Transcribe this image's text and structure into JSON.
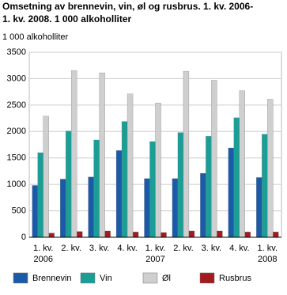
{
  "chart_data": {
    "type": "bar",
    "title": [
      "Omsetning av brennevin, vin, øl og rusbrus.  1. kv. 2006-",
      "1. kv. 2008. 1 000 alkoholliter"
    ],
    "y_label": "1 000 alkoholliter",
    "categories": [
      "1. kv.\n2006",
      "2. kv.",
      "3. kv.",
      "4. kv.",
      "1. kv.\n2007",
      "2. kv.",
      "3. kv.",
      "4. kv.",
      "1. kv.\n2008"
    ],
    "series": [
      {
        "name": "Brennevin",
        "color": "#1a5aa8",
        "values": [
          980,
          1100,
          1140,
          1640,
          1110,
          1110,
          1210,
          1690,
          1130
        ]
      },
      {
        "name": "Vin",
        "color": "#1a9e96",
        "values": [
          1600,
          2010,
          1840,
          2190,
          1810,
          1980,
          1910,
          2260,
          1950
        ]
      },
      {
        "name": "Øl",
        "color": "#cfcfcf",
        "values": [
          2290,
          3150,
          3110,
          2710,
          2540,
          3140,
          2970,
          2770,
          2610
        ]
      },
      {
        "name": "Rusbrus",
        "color": "#a31a1f",
        "values": [
          80,
          110,
          120,
          100,
          90,
          120,
          120,
          100,
          100
        ]
      }
    ],
    "ylim": [
      0,
      3500
    ],
    "yticks": [
      0,
      500,
      1000,
      1500,
      2000,
      2500,
      3000,
      3500
    ],
    "grid": true
  }
}
